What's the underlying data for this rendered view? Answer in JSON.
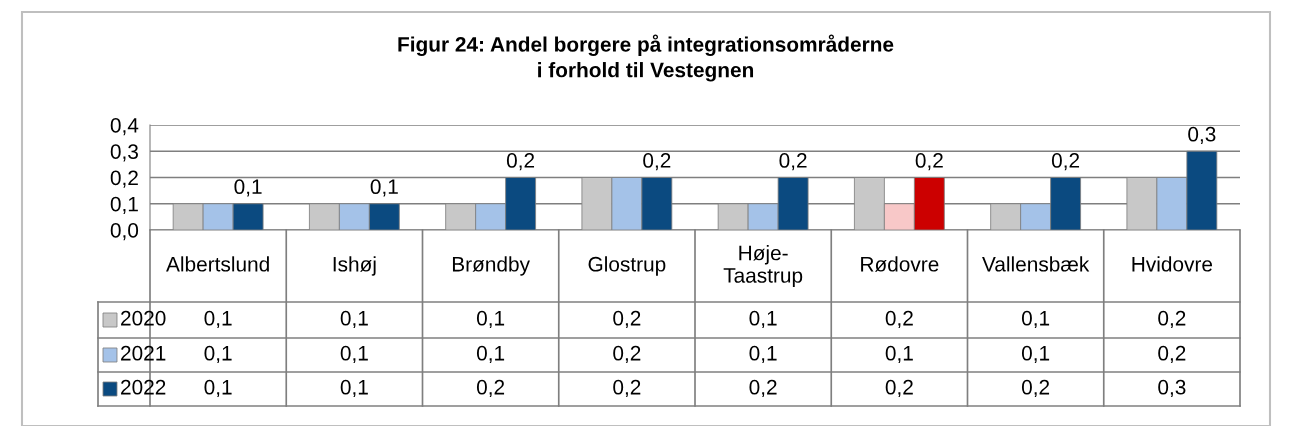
{
  "chart_data": {
    "type": "bar",
    "title": "Figur 24: Andel borgere på integrationsområderne\ni forhold til Vestegnen",
    "categories": [
      "Albertslund",
      "Ishøj",
      "Brøndby",
      "Glostrup",
      "Høje-\nTaastrup",
      "Rødovre",
      "Vallensbæk",
      "Hvidovre"
    ],
    "series": [
      {
        "name": "2020",
        "color": "#c8c8c8",
        "colors": [
          "#c8c8c8",
          "#c8c8c8",
          "#c8c8c8",
          "#c8c8c8",
          "#c8c8c8",
          "#c8c8c8",
          "#c8c8c8",
          "#c8c8c8"
        ],
        "values": [
          0.1,
          0.1,
          0.1,
          0.2,
          0.1,
          0.2,
          0.1,
          0.2
        ],
        "value_labels": [
          "0,1",
          "0,1",
          "0,1",
          "0,2",
          "0,1",
          "0,2",
          "0,1",
          "0,2"
        ]
      },
      {
        "name": "2021",
        "color": "#a4c2e8",
        "colors": [
          "#a4c2e8",
          "#a4c2e8",
          "#a4c2e8",
          "#a4c2e8",
          "#a4c2e8",
          "#f8c8c8",
          "#a4c2e8",
          "#a4c2e8"
        ],
        "values": [
          0.1,
          0.1,
          0.1,
          0.2,
          0.1,
          0.1,
          0.1,
          0.2
        ],
        "value_labels": [
          "0,1",
          "0,1",
          "0,1",
          "0,2",
          "0,1",
          "0,1",
          "0,1",
          "0,2"
        ]
      },
      {
        "name": "2022",
        "color": "#0b4a80",
        "colors": [
          "#0b4a80",
          "#0b4a80",
          "#0b4a80",
          "#0b4a80",
          "#0b4a80",
          "#cc0000",
          "#0b4a80",
          "#0b4a80"
        ],
        "values": [
          0.1,
          0.1,
          0.2,
          0.2,
          0.2,
          0.2,
          0.2,
          0.3
        ],
        "value_labels": [
          "0,1",
          "0,1",
          "0,2",
          "0,2",
          "0,2",
          "0,2",
          "0,2",
          "0,3"
        ]
      }
    ],
    "annotations": [
      "0,1",
      "0,1",
      "0,2",
      "0,2",
      "0,2",
      "0,2",
      "0,2",
      "0,3"
    ],
    "ylim": [
      0,
      0.4
    ],
    "yticks": [
      {
        "value": 0,
        "label": "0,0"
      },
      {
        "value": 0.1,
        "label": "0,1"
      },
      {
        "value": 0.2,
        "label": "0,2"
      },
      {
        "value": 0.3,
        "label": "0,3"
      },
      {
        "value": 0.4,
        "label": "0,4"
      }
    ],
    "grid": "y",
    "legend": "bottom left"
  }
}
